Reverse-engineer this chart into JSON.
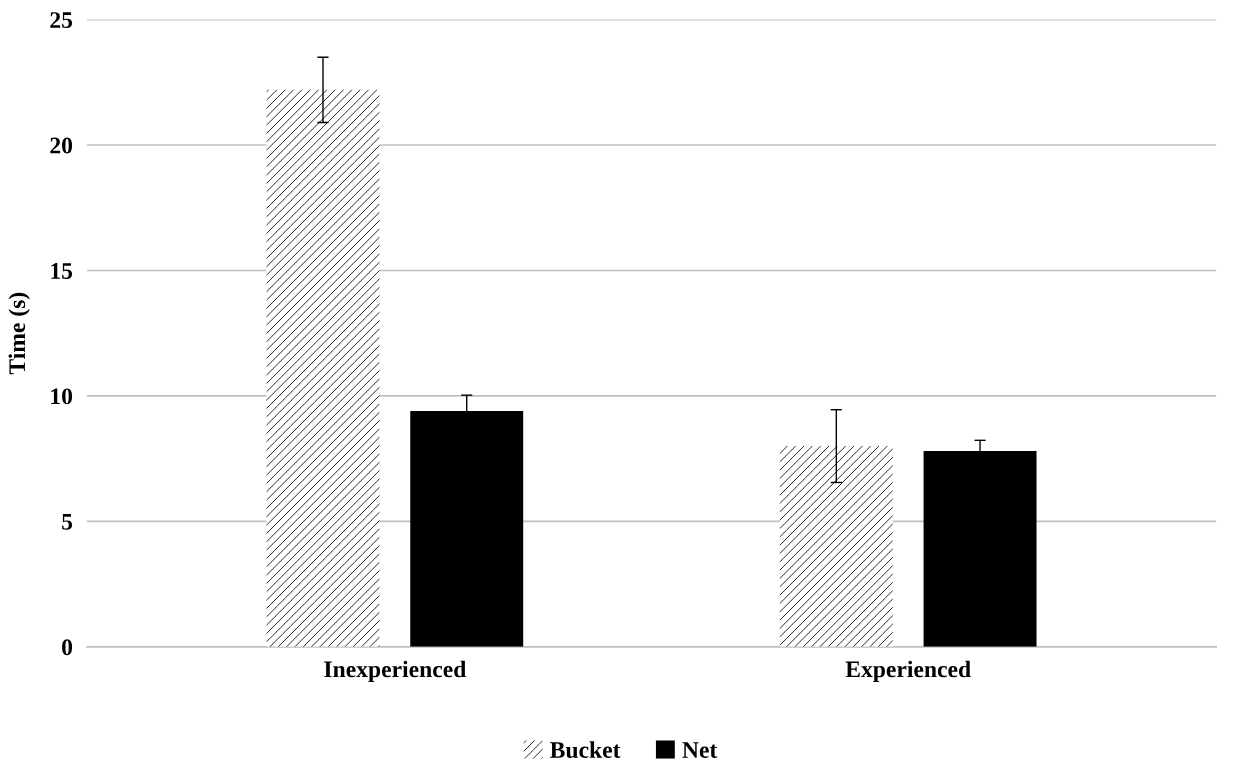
{
  "chart_data": {
    "type": "bar",
    "ylabel": "Time (s)",
    "categories": [
      "Inexperienced",
      "Experienced"
    ],
    "series": [
      {
        "name": "Bucket",
        "color": "#ffffff",
        "values": [
          22.2,
          8.0
        ],
        "errors": [
          1.3,
          1.45
        ]
      },
      {
        "name": "Net",
        "color": "#000000",
        "values": [
          9.4,
          7.8
        ],
        "errors": [
          0.63,
          0.43
        ]
      }
    ],
    "ylim": [
      0,
      25
    ],
    "yticks": [
      0,
      5,
      10,
      15,
      20,
      25
    ],
    "grid": "y",
    "legend": "bottom"
  }
}
